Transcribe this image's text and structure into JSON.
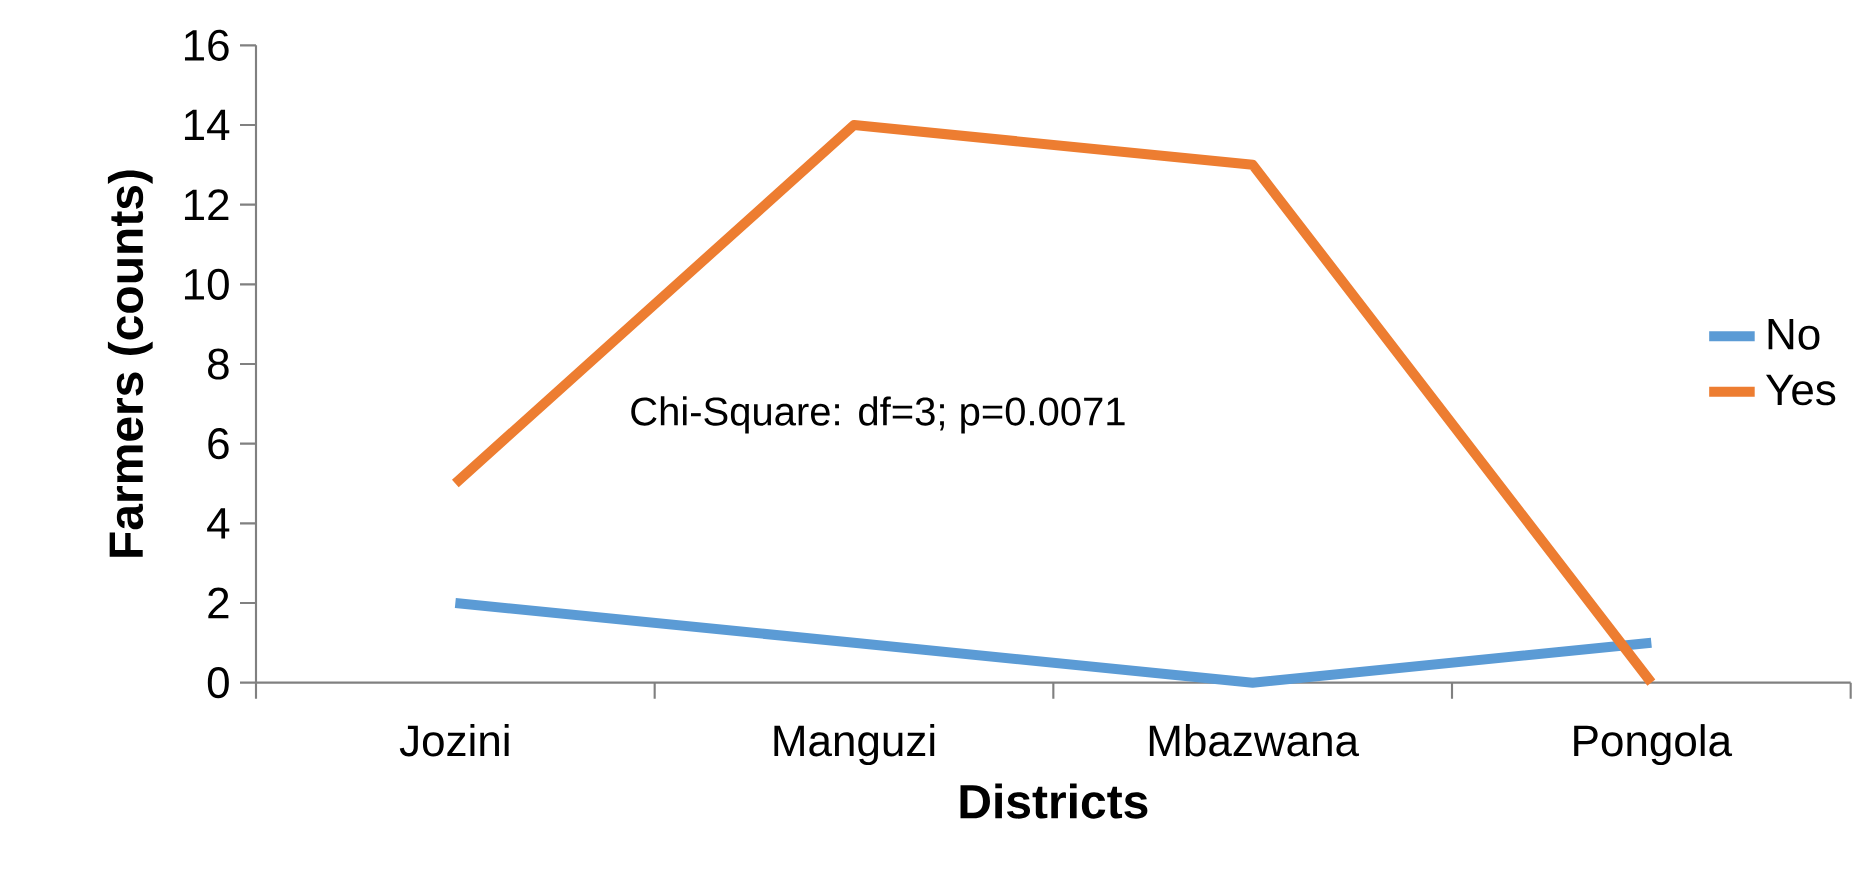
{
  "chart_data": {
    "type": "line",
    "xlabel": "Districts",
    "ylabel": "Farmers (counts)",
    "categories": [
      "Jozini",
      "Manguzi",
      "Mbazwana",
      "Pongola"
    ],
    "series": [
      {
        "name": "No",
        "color": "#5b9bd5",
        "values": [
          2,
          1,
          0,
          1
        ]
      },
      {
        "name": "Yes",
        "color": "#ed7d31",
        "values": [
          5,
          14,
          13,
          0
        ]
      }
    ],
    "ylim": [
      0,
      16
    ],
    "yticks": [
      0,
      2,
      4,
      6,
      8,
      10,
      12,
      14,
      16
    ],
    "legend": "right",
    "grid": false,
    "marker": "none",
    "line_style": "solid",
    "annotations": [
      "Chi-Square: df=3; p=0.0071"
    ]
  }
}
